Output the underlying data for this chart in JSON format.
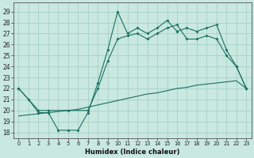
{
  "xlabel": "Humidex (Indice chaleur)",
  "bg_color": "#c8e8e0",
  "grid_color": "#a8d0c8",
  "line_color": "#1a7060",
  "xlim": [
    -0.5,
    23.5
  ],
  "ylim": [
    17.5,
    29.8
  ],
  "xticks": [
    0,
    1,
    2,
    3,
    4,
    5,
    6,
    7,
    8,
    9,
    10,
    11,
    12,
    13,
    14,
    15,
    16,
    17,
    18,
    19,
    20,
    21,
    22,
    23
  ],
  "yticks": [
    18,
    19,
    20,
    21,
    22,
    23,
    24,
    25,
    26,
    27,
    28,
    29
  ],
  "line1_x": [
    0,
    1,
    2,
    3,
    4,
    5,
    6,
    7,
    8,
    9,
    10,
    11,
    12,
    13,
    14,
    15,
    16,
    17,
    18,
    19,
    20,
    21,
    22,
    23
  ],
  "line1_y": [
    22,
    21,
    19.8,
    19.8,
    18.2,
    18.2,
    18.2,
    19.8,
    22.5,
    25.5,
    29,
    27,
    27.5,
    27,
    27.5,
    28.2,
    27.2,
    27.5,
    27.2,
    27.5,
    27.8,
    25.5,
    24,
    22
  ],
  "line2_x": [
    0,
    2,
    3,
    5,
    7,
    8,
    9,
    10,
    11,
    12,
    13,
    14,
    15,
    16,
    17,
    18,
    19,
    20,
    21,
    22,
    23
  ],
  "line2_y": [
    22,
    20,
    20,
    20,
    20,
    22,
    24.5,
    26.5,
    26.8,
    27,
    26.5,
    27,
    27.5,
    27.8,
    26.5,
    26.5,
    26.8,
    26.5,
    25,
    24,
    22
  ],
  "line3_x": [
    0,
    1,
    2,
    3,
    4,
    5,
    6,
    7,
    8,
    9,
    10,
    11,
    12,
    13,
    14,
    15,
    16,
    17,
    18,
    19,
    20,
    21,
    22,
    23
  ],
  "line3_y": [
    19.5,
    19.6,
    19.7,
    19.8,
    19.9,
    20.0,
    20.1,
    20.3,
    20.5,
    20.7,
    20.9,
    21.1,
    21.3,
    21.5,
    21.6,
    21.8,
    22.0,
    22.1,
    22.3,
    22.4,
    22.5,
    22.6,
    22.7,
    22.0
  ]
}
